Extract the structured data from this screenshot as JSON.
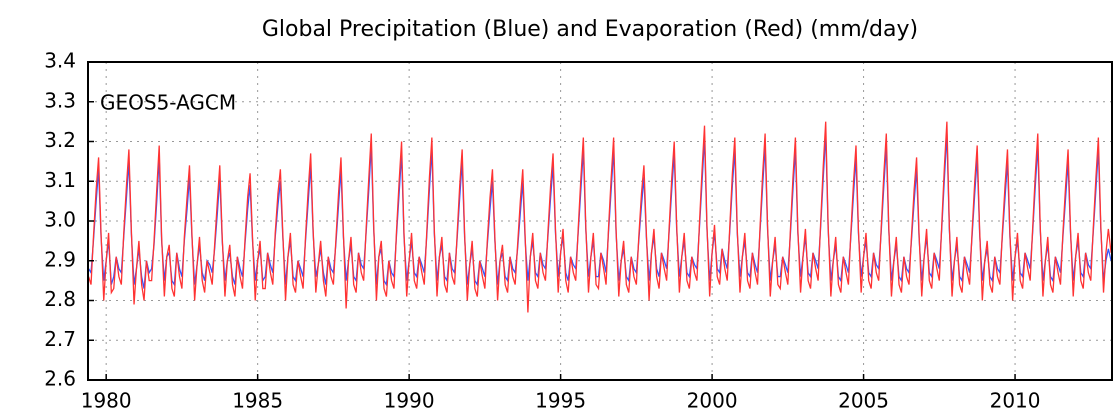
{
  "chart_data": {
    "type": "line",
    "title": "Global Precipitation (Blue) and Evaporation (Red) (mm/day)",
    "annotation": "GEOS5-AGCM",
    "xlim": [
      1979.4,
      2013.2
    ],
    "xticks": [
      1980,
      1985,
      1990,
      1995,
      2000,
      2005,
      2010
    ],
    "ylim": [
      2.6,
      3.4
    ],
    "yticks": [
      2.6,
      2.7,
      2.8,
      2.9,
      {
        "value": 3,
        "label": "3.0"
      },
      3.1,
      3.2,
      3.3,
      3.4
    ],
    "grid": true,
    "x": [
      1979.42,
      1979.5,
      1979.58,
      1979.67,
      1979.75,
      1979.83,
      1979.92,
      1980,
      1980.08,
      1980.17,
      1980.25,
      1980.33,
      1980.42,
      1980.5,
      1980.58,
      1980.67,
      1980.75,
      1980.83,
      1980.92,
      1981,
      1981.08,
      1981.17,
      1981.25,
      1981.33,
      1981.42,
      1981.5,
      1981.58,
      1981.67,
      1981.75,
      1981.83,
      1981.92,
      1982,
      1982.08,
      1982.17,
      1982.25,
      1982.33,
      1982.42,
      1982.5,
      1982.58,
      1982.67,
      1982.75,
      1982.83,
      1982.92,
      1983,
      1983.08,
      1983.17,
      1983.25,
      1983.33,
      1983.42,
      1983.5,
      1983.58,
      1983.67,
      1983.75,
      1983.83,
      1983.92,
      1984,
      1984.08,
      1984.17,
      1984.25,
      1984.33,
      1984.42,
      1984.5,
      1984.58,
      1984.67,
      1984.75,
      1984.83,
      1984.92,
      1985,
      1985.08,
      1985.17,
      1985.25,
      1985.33,
      1985.42,
      1985.5,
      1985.58,
      1985.67,
      1985.75,
      1985.83,
      1985.92,
      1986,
      1986.08,
      1986.17,
      1986.25,
      1986.33,
      1986.42,
      1986.5,
      1986.58,
      1986.67,
      1986.75,
      1986.83,
      1986.92,
      1987,
      1987.08,
      1987.17,
      1987.25,
      1987.33,
      1987.42,
      1987.5,
      1987.58,
      1987.67,
      1987.75,
      1987.83,
      1987.92,
      1988,
      1988.08,
      1988.17,
      1988.25,
      1988.33,
      1988.42,
      1988.5,
      1988.58,
      1988.67,
      1988.75,
      1988.83,
      1988.92,
      1989,
      1989.08,
      1989.17,
      1989.25,
      1989.33,
      1989.42,
      1989.5,
      1989.58,
      1989.67,
      1989.75,
      1989.83,
      1989.92,
      1990,
      1990.08,
      1990.17,
      1990.25,
      1990.33,
      1990.42,
      1990.5,
      1990.58,
      1990.67,
      1990.75,
      1990.83,
      1990.92,
      1991,
      1991.08,
      1991.17,
      1991.25,
      1991.33,
      1991.42,
      1991.5,
      1991.58,
      1991.67,
      1991.75,
      1991.83,
      1991.92,
      1992,
      1992.08,
      1992.17,
      1992.25,
      1992.33,
      1992.42,
      1992.5,
      1992.58,
      1992.67,
      1992.75,
      1992.83,
      1992.92,
      1993,
      1993.08,
      1993.17,
      1993.25,
      1993.33,
      1993.42,
      1993.5,
      1993.58,
      1993.67,
      1993.75,
      1993.83,
      1993.92,
      1994,
      1994.08,
      1994.17,
      1994.25,
      1994.33,
      1994.42,
      1994.5,
      1994.58,
      1994.67,
      1994.75,
      1994.83,
      1994.92,
      1995,
      1995.08,
      1995.17,
      1995.25,
      1995.33,
      1995.42,
      1995.5,
      1995.58,
      1995.67,
      1995.75,
      1995.83,
      1995.92,
      1996,
      1996.08,
      1996.17,
      1996.25,
      1996.33,
      1996.42,
      1996.5,
      1996.58,
      1996.67,
      1996.75,
      1996.83,
      1996.92,
      1997,
      1997.08,
      1997.17,
      1997.25,
      1997.33,
      1997.42,
      1997.5,
      1997.58,
      1997.67,
      1997.75,
      1997.83,
      1997.92,
      1998,
      1998.08,
      1998.17,
      1998.25,
      1998.33,
      1998.42,
      1998.5,
      1998.58,
      1998.67,
      1998.75,
      1998.83,
      1998.92,
      1999,
      1999.08,
      1999.17,
      1999.25,
      1999.33,
      1999.42,
      1999.5,
      1999.58,
      1999.67,
      1999.75,
      1999.83,
      1999.92,
      2000,
      2000.08,
      2000.17,
      2000.25,
      2000.33,
      2000.42,
      2000.5,
      2000.58,
      2000.67,
      2000.75,
      2000.83,
      2000.92,
      2001,
      2001.08,
      2001.17,
      2001.25,
      2001.33,
      2001.42,
      2001.5,
      2001.58,
      2001.67,
      2001.75,
      2001.83,
      2001.92,
      2002,
      2002.08,
      2002.17,
      2002.25,
      2002.33,
      2002.42,
      2002.5,
      2002.58,
      2002.67,
      2002.75,
      2002.83,
      2002.92,
      2003,
      2003.08,
      2003.17,
      2003.25,
      2003.33,
      2003.42,
      2003.5,
      2003.58,
      2003.67,
      2003.75,
      2003.83,
      2003.92,
      2004,
      2004.08,
      2004.17,
      2004.25,
      2004.33,
      2004.42,
      2004.5,
      2004.58,
      2004.67,
      2004.75,
      2004.83,
      2004.92,
      2005,
      2005.08,
      2005.17,
      2005.25,
      2005.33,
      2005.42,
      2005.5,
      2005.58,
      2005.67,
      2005.75,
      2005.83,
      2005.92,
      2006,
      2006.08,
      2006.17,
      2006.25,
      2006.33,
      2006.42,
      2006.5,
      2006.58,
      2006.67,
      2006.75,
      2006.83,
      2006.92,
      2007,
      2007.08,
      2007.17,
      2007.25,
      2007.33,
      2007.42,
      2007.5,
      2007.58,
      2007.67,
      2007.75,
      2007.83,
      2007.92,
      2008,
      2008.08,
      2008.17,
      2008.25,
      2008.33,
      2008.42,
      2008.5,
      2008.58,
      2008.67,
      2008.75,
      2008.83,
      2008.92,
      2009,
      2009.08,
      2009.17,
      2009.25,
      2009.33,
      2009.42,
      2009.5,
      2009.58,
      2009.67,
      2009.75,
      2009.83,
      2009.92,
      2010,
      2010.08,
      2010.17,
      2010.25,
      2010.33,
      2010.42,
      2010.5,
      2010.58,
      2010.67,
      2010.75,
      2010.83,
      2010.92,
      2011,
      2011.08,
      2011.17,
      2011.25,
      2011.33,
      2011.42,
      2011.5,
      2011.58,
      2011.67,
      2011.75,
      2011.83,
      2011.92,
      2012,
      2012.08,
      2012.17,
      2012.25,
      2012.33,
      2012.42,
      2012.5,
      2012.58,
      2012.67,
      2012.75,
      2012.83,
      2012.92,
      2013,
      2013.08,
      2013.17
    ],
    "series": [
      {
        "color": "#3355ff",
        "values": [
          2.88,
          2.87,
          2.95,
          3.05,
          3.13,
          2.96,
          2.85,
          2.9,
          2.95,
          2.84,
          2.86,
          2.91,
          2.88,
          2.87,
          2.96,
          3.06,
          3.15,
          2.97,
          2.84,
          2.88,
          2.93,
          2.86,
          2.83,
          2.9,
          2.87,
          2.88,
          2.94,
          3.05,
          3.16,
          2.95,
          2.85,
          2.91,
          2.92,
          2.85,
          2.84,
          2.92,
          2.88,
          2.86,
          2.95,
          3.03,
          3.11,
          2.96,
          2.84,
          2.89,
          2.94,
          2.87,
          2.85,
          2.9,
          2.89,
          2.87,
          2.93,
          3.02,
          3.11,
          2.95,
          2.85,
          2.9,
          2.92,
          2.86,
          2.84,
          2.91,
          2.88,
          2.86,
          2.94,
          3.03,
          3.09,
          2.95,
          2.85,
          2.9,
          2.93,
          2.85,
          2.86,
          2.92,
          2.89,
          2.87,
          2.96,
          3.04,
          3.1,
          2.96,
          2.84,
          2.91,
          2.95,
          2.86,
          2.85,
          2.9,
          2.88,
          2.86,
          2.95,
          3.05,
          3.14,
          2.97,
          2.86,
          2.89,
          2.93,
          2.87,
          2.84,
          2.91,
          2.88,
          2.87,
          2.94,
          3.04,
          3.13,
          2.96,
          2.85,
          2.9,
          2.94,
          2.86,
          2.85,
          2.92,
          2.89,
          2.88,
          2.97,
          3.08,
          3.19,
          2.98,
          2.84,
          2.91,
          2.93,
          2.85,
          2.84,
          2.9,
          2.87,
          2.86,
          2.96,
          3.07,
          3.17,
          2.96,
          2.85,
          2.9,
          2.95,
          2.87,
          2.86,
          2.91,
          2.89,
          2.87,
          2.96,
          3.08,
          3.18,
          2.97,
          2.85,
          2.91,
          2.94,
          2.86,
          2.85,
          2.92,
          2.88,
          2.87,
          2.95,
          3.06,
          3.15,
          2.96,
          2.84,
          2.89,
          2.93,
          2.85,
          2.84,
          2.9,
          2.88,
          2.86,
          2.94,
          3.03,
          3.1,
          2.95,
          2.84,
          2.9,
          2.92,
          2.86,
          2.85,
          2.91,
          2.88,
          2.87,
          2.93,
          3.02,
          3.1,
          2.95,
          2.85,
          2.91,
          2.95,
          2.87,
          2.86,
          2.92,
          2.89,
          2.88,
          2.96,
          3.06,
          3.14,
          2.97,
          2.86,
          2.92,
          2.96,
          2.87,
          2.85,
          2.91,
          2.89,
          2.88,
          2.97,
          3.08,
          3.18,
          2.98,
          2.86,
          2.91,
          2.95,
          2.86,
          2.86,
          2.92,
          2.9,
          2.87,
          2.97,
          3.08,
          3.18,
          2.97,
          2.85,
          2.9,
          2.93,
          2.86,
          2.85,
          2.91,
          2.88,
          2.87,
          2.95,
          3.04,
          3.11,
          2.96,
          2.85,
          2.92,
          2.96,
          2.88,
          2.86,
          2.92,
          2.9,
          2.88,
          2.97,
          3.08,
          3.17,
          2.98,
          2.86,
          2.91,
          2.95,
          2.87,
          2.86,
          2.91,
          2.89,
          2.88,
          2.98,
          3.1,
          3.21,
          2.98,
          2.85,
          2.92,
          2.97,
          2.88,
          2.87,
          2.93,
          2.9,
          2.88,
          2.97,
          3.09,
          3.18,
          2.97,
          2.86,
          2.91,
          2.95,
          2.87,
          2.86,
          2.92,
          2.89,
          2.87,
          2.97,
          3.09,
          3.19,
          2.98,
          2.85,
          2.9,
          2.94,
          2.86,
          2.86,
          2.91,
          2.89,
          2.87,
          2.96,
          3.08,
          3.18,
          2.97,
          2.86,
          2.91,
          2.96,
          2.87,
          2.86,
          2.92,
          2.9,
          2.88,
          2.98,
          3.11,
          3.22,
          2.98,
          2.85,
          2.9,
          2.94,
          2.86,
          2.85,
          2.91,
          2.89,
          2.87,
          2.96,
          3.07,
          3.16,
          2.97,
          2.86,
          2.91,
          2.95,
          2.87,
          2.86,
          2.92,
          2.89,
          2.88,
          2.97,
          3.09,
          3.19,
          2.98,
          2.85,
          2.9,
          2.94,
          2.86,
          2.85,
          2.91,
          2.88,
          2.87,
          2.95,
          3.05,
          3.13,
          2.96,
          2.85,
          2.91,
          2.96,
          2.87,
          2.86,
          2.92,
          2.9,
          2.88,
          2.98,
          3.11,
          3.22,
          2.98,
          2.85,
          2.9,
          2.94,
          2.86,
          2.85,
          2.91,
          2.89,
          2.87,
          2.96,
          3.07,
          3.16,
          2.97,
          2.85,
          2.9,
          2.93,
          2.86,
          2.85,
          2.91,
          2.88,
          2.87,
          2.96,
          3.06,
          3.15,
          2.96,
          2.85,
          2.91,
          2.95,
          2.87,
          2.86,
          2.92,
          2.9,
          2.88,
          2.97,
          3.09,
          3.19,
          2.98,
          2.85,
          2.9,
          2.94,
          2.86,
          2.85,
          2.91,
          2.89,
          2.87,
          2.96,
          3.06,
          3.15,
          2.97,
          2.85,
          2.91,
          2.95,
          2.87,
          2.86,
          2.92,
          2.89,
          2.88,
          2.97,
          3.08,
          3.18,
          2.98,
          2.85,
          2.9,
          2.93,
          2.9
        ]
      },
      {
        "color": "#ff3333",
        "values": [
          2.86,
          2.84,
          2.96,
          3.08,
          3.16,
          2.97,
          2.8,
          2.9,
          2.97,
          2.82,
          2.83,
          2.91,
          2.86,
          2.84,
          2.97,
          3.09,
          3.18,
          2.98,
          2.79,
          2.88,
          2.95,
          2.84,
          2.8,
          2.9,
          2.85,
          2.85,
          2.95,
          3.08,
          3.19,
          2.96,
          2.81,
          2.91,
          2.94,
          2.83,
          2.81,
          2.92,
          2.86,
          2.83,
          2.96,
          3.06,
          3.14,
          2.97,
          2.8,
          2.89,
          2.96,
          2.85,
          2.82,
          2.9,
          2.87,
          2.84,
          2.94,
          3.05,
          3.14,
          2.96,
          2.81,
          2.9,
          2.94,
          2.84,
          2.81,
          2.91,
          2.86,
          2.83,
          2.95,
          3.06,
          3.12,
          2.96,
          2.8,
          2.9,
          2.95,
          2.83,
          2.83,
          2.92,
          2.87,
          2.84,
          2.97,
          3.07,
          3.13,
          2.97,
          2.8,
          2.91,
          2.97,
          2.84,
          2.82,
          2.9,
          2.86,
          2.83,
          2.96,
          3.08,
          3.17,
          2.98,
          2.82,
          2.89,
          2.95,
          2.85,
          2.81,
          2.91,
          2.86,
          2.84,
          2.95,
          3.07,
          3.16,
          2.97,
          2.78,
          2.9,
          2.96,
          2.84,
          2.82,
          2.92,
          2.87,
          2.85,
          2.98,
          3.11,
          3.22,
          2.99,
          2.8,
          2.91,
          2.95,
          2.83,
          2.81,
          2.9,
          2.85,
          2.83,
          2.97,
          3.1,
          3.2,
          2.97,
          2.81,
          2.9,
          2.97,
          2.85,
          2.83,
          2.91,
          2.87,
          2.84,
          2.97,
          3.11,
          3.21,
          2.98,
          2.81,
          2.91,
          2.96,
          2.84,
          2.82,
          2.92,
          2.86,
          2.84,
          2.96,
          3.09,
          3.18,
          2.97,
          2.8,
          2.89,
          2.95,
          2.83,
          2.81,
          2.9,
          2.86,
          2.83,
          2.95,
          3.06,
          3.13,
          2.96,
          2.8,
          2.9,
          2.94,
          2.84,
          2.82,
          2.91,
          2.86,
          2.84,
          2.94,
          3.05,
          3.13,
          2.96,
          2.77,
          2.91,
          2.97,
          2.85,
          2.83,
          2.92,
          2.87,
          2.85,
          2.97,
          3.09,
          3.17,
          2.98,
          2.82,
          2.92,
          2.98,
          2.85,
          2.82,
          2.91,
          2.87,
          2.85,
          2.98,
          3.11,
          3.21,
          2.99,
          2.82,
          2.91,
          2.97,
          2.84,
          2.83,
          2.92,
          2.88,
          2.84,
          2.98,
          3.11,
          3.21,
          2.98,
          2.81,
          2.9,
          2.95,
          2.84,
          2.82,
          2.91,
          2.86,
          2.84,
          2.96,
          3.07,
          3.14,
          2.97,
          2.8,
          2.92,
          2.98,
          2.86,
          2.83,
          2.92,
          2.88,
          2.85,
          2.98,
          3.11,
          3.2,
          2.99,
          2.82,
          2.91,
          2.97,
          2.85,
          2.83,
          2.91,
          2.87,
          2.85,
          2.99,
          3.13,
          3.24,
          2.99,
          2.81,
          2.92,
          2.99,
          2.86,
          2.84,
          2.93,
          2.88,
          2.85,
          2.98,
          3.12,
          3.21,
          2.98,
          2.82,
          2.91,
          2.97,
          2.85,
          2.83,
          2.92,
          2.87,
          2.84,
          2.98,
          3.12,
          3.22,
          2.99,
          2.81,
          2.9,
          2.96,
          2.84,
          2.83,
          2.91,
          2.87,
          2.84,
          2.97,
          3.11,
          3.21,
          2.98,
          2.82,
          2.91,
          2.98,
          2.85,
          2.83,
          2.92,
          2.88,
          2.85,
          2.99,
          3.14,
          3.25,
          2.99,
          2.81,
          2.9,
          2.96,
          2.84,
          2.82,
          2.91,
          2.87,
          2.84,
          2.97,
          3.1,
          3.19,
          2.98,
          2.82,
          2.91,
          2.97,
          2.85,
          2.83,
          2.92,
          2.87,
          2.85,
          2.98,
          3.12,
          3.22,
          2.99,
          2.81,
          2.9,
          2.96,
          2.84,
          2.82,
          2.91,
          2.86,
          2.84,
          2.96,
          3.08,
          3.16,
          2.97,
          2.81,
          2.91,
          2.98,
          2.85,
          2.83,
          2.92,
          2.88,
          2.85,
          2.99,
          3.14,
          3.25,
          2.99,
          2.81,
          2.9,
          2.96,
          2.84,
          2.82,
          2.91,
          2.87,
          2.84,
          2.97,
          3.1,
          3.19,
          2.98,
          2.8,
          2.9,
          2.95,
          2.84,
          2.82,
          2.91,
          2.86,
          2.84,
          2.97,
          3.09,
          3.18,
          2.97,
          2.8,
          2.91,
          2.97,
          2.85,
          2.83,
          2.92,
          2.88,
          2.85,
          2.98,
          3.12,
          3.22,
          2.99,
          2.81,
          2.9,
          2.96,
          2.84,
          2.82,
          2.91,
          2.87,
          2.84,
          2.97,
          3.09,
          3.18,
          2.98,
          2.81,
          2.91,
          2.97,
          2.85,
          2.83,
          2.92,
          2.87,
          2.85,
          2.98,
          3.11,
          3.21,
          2.99,
          2.82,
          2.92,
          2.98,
          2.92
        ]
      }
    ]
  }
}
